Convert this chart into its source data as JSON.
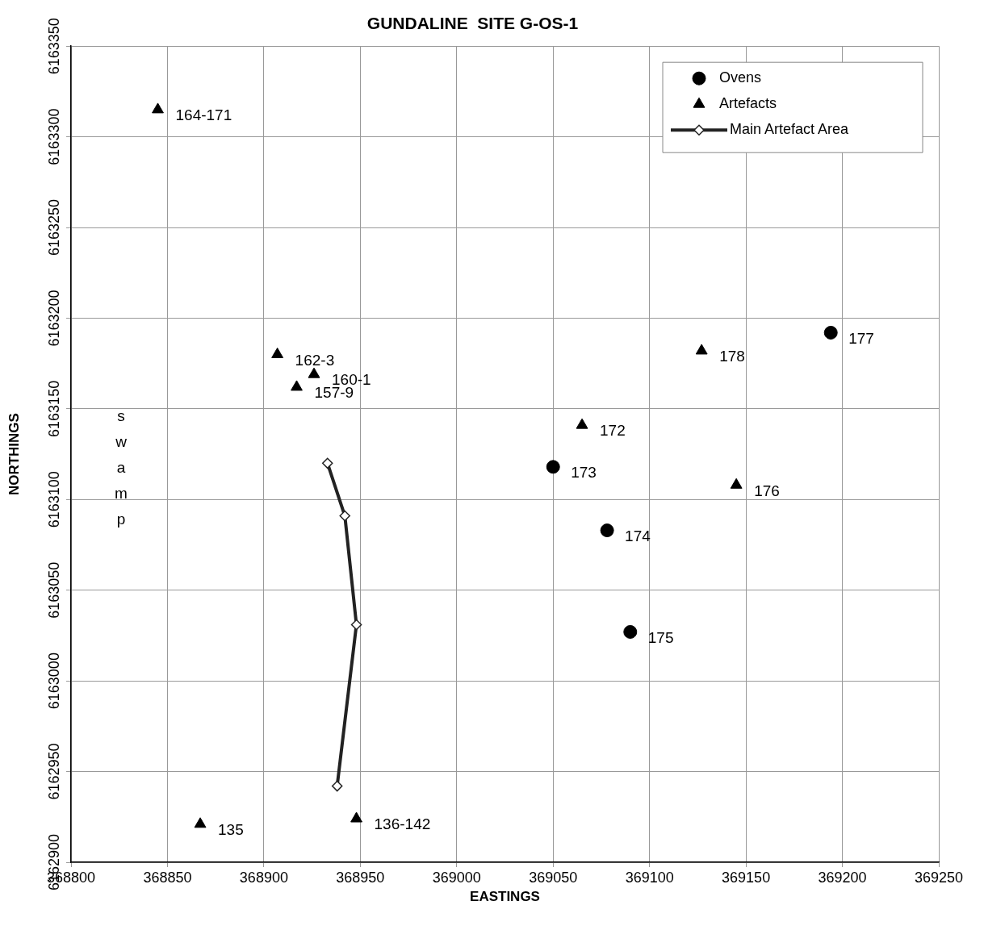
{
  "chart_data": {
    "type": "scatter",
    "title": "GUNDALINE  SITE G-OS-1",
    "xlabel": "EASTINGS",
    "ylabel": "NORTHINGS",
    "xlim": [
      368800,
      369250
    ],
    "xticks": [
      368800,
      368850,
      368900,
      368950,
      369000,
      369050,
      369100,
      369150,
      369200,
      369250
    ],
    "ylim": [
      6162900,
      6163350
    ],
    "yticks": [
      6162900,
      6162950,
      6163000,
      6163050,
      6163100,
      6163150,
      6163200,
      6163250,
      6163300,
      6163350
    ],
    "grid": true,
    "legend": "top right",
    "series": [
      {
        "name": "Ovens",
        "marker": "circle",
        "color": "#000000",
        "x": [
          369050,
          369078,
          369090,
          369194
        ],
        "values": [
          6163118,
          6163083,
          6163027,
          6163192
        ]
      },
      {
        "name": "Artefacts",
        "marker": "triangle",
        "color": "#000000",
        "x": [
          368845,
          368907,
          368926,
          368917,
          369065,
          369127,
          369145,
          368867,
          368948
        ],
        "values": [
          6163315,
          6163180,
          6163169,
          6163162,
          6163141,
          6163182,
          6163108,
          6162921,
          6162924
        ]
      },
      {
        "name": "Main Artefact Area",
        "type": "line",
        "marker": "diamond",
        "line_style": "solid",
        "color": "#222222",
        "x": [
          368933,
          368942,
          368948,
          368938
        ],
        "values": [
          6163120,
          6163091,
          6163031,
          6162942
        ]
      }
    ],
    "annotations": [
      {
        "text": "164-171",
        "x": 368845,
        "y": 6163315
      },
      {
        "text": "162-3",
        "x": 368907,
        "y": 6163180
      },
      {
        "text": "160-1",
        "x": 368926,
        "y": 6163169
      },
      {
        "text": "157-9",
        "x": 368917,
        "y": 6163162
      },
      {
        "text": "172",
        "x": 369065,
        "y": 6163141
      },
      {
        "text": "178",
        "x": 369127,
        "y": 6163182
      },
      {
        "text": "176",
        "x": 369145,
        "y": 6163108
      },
      {
        "text": "135",
        "x": 368867,
        "y": 6162921
      },
      {
        "text": "136-142",
        "x": 368948,
        "y": 6162924
      },
      {
        "text": "173",
        "x": 369050,
        "y": 6163118
      },
      {
        "text": "174",
        "x": 369078,
        "y": 6163083
      },
      {
        "text": "175",
        "x": 369090,
        "y": 6163027
      },
      {
        "text": "177",
        "x": 369194,
        "y": 6163192
      },
      "swamp"
    ]
  }
}
